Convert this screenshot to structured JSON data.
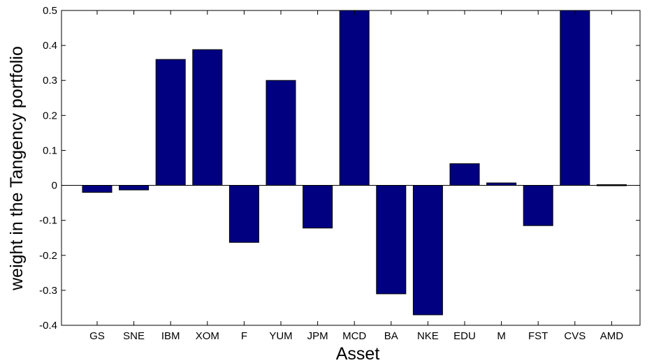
{
  "chart_data": {
    "type": "bar",
    "xlabel": "Asset",
    "ylabel": "weight in the Tangency portfolio",
    "categories": [
      "GS",
      "SNE",
      "IBM",
      "XOM",
      "F",
      "YUM",
      "JPM",
      "MCD",
      "BA",
      "NKE",
      "EDU",
      "M",
      "FST",
      "CVS",
      "AMD"
    ],
    "values": [
      -0.02,
      -0.013,
      0.36,
      0.388,
      -0.163,
      0.3,
      -0.122,
      0.5,
      -0.31,
      -0.37,
      0.062,
      0.007,
      -0.115,
      0.5,
      0.002
    ],
    "ylim": [
      -0.4,
      0.5
    ],
    "yticks": [
      "0.5",
      "0.4",
      "0.3",
      "0.2",
      "0.1",
      "0",
      "-0.1",
      "-0.2",
      "-0.3",
      "-0.4"
    ],
    "colors": {
      "bar": "#000080",
      "bar_stroke": "#000000",
      "axis": "#000000",
      "background": "#ffffff"
    },
    "grid": false,
    "legend": "none"
  }
}
